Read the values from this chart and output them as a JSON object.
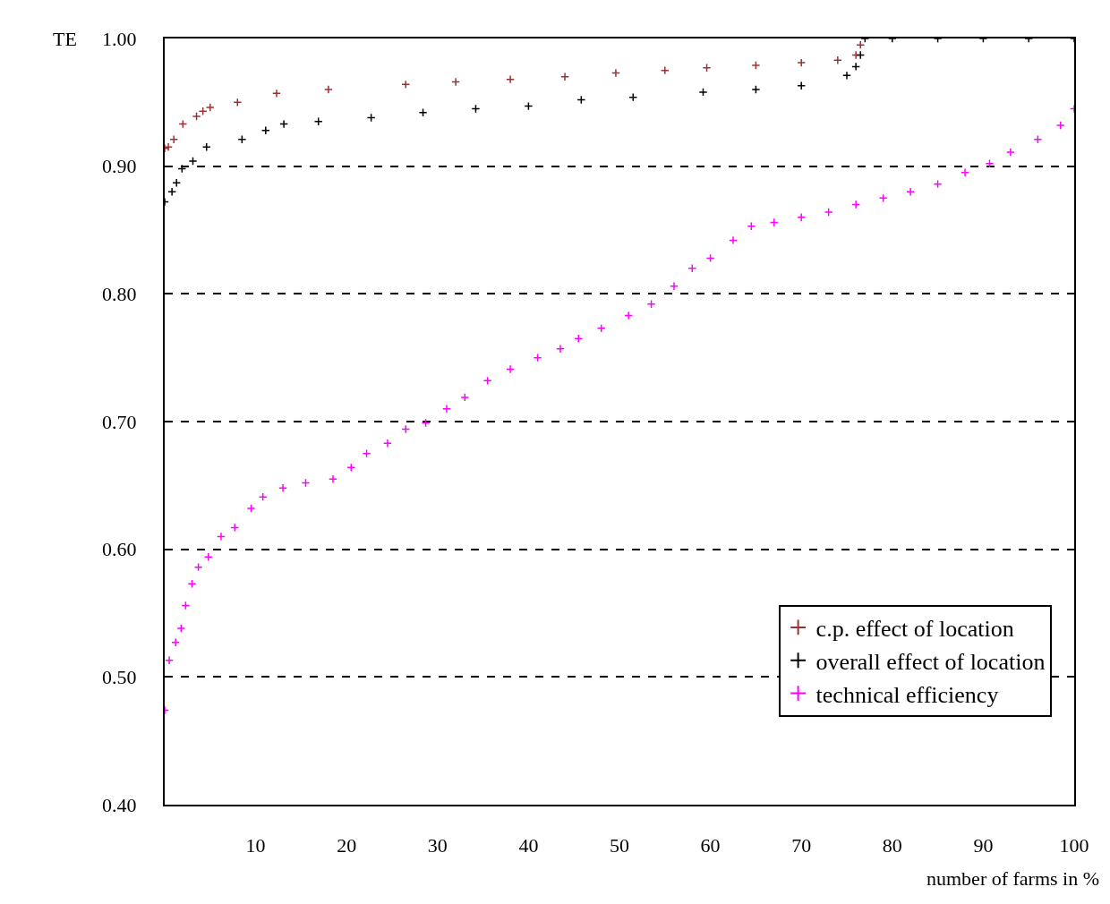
{
  "chart_data": {
    "type": "scatter",
    "xlabel": "number of farms in %",
    "ylabel": "TE",
    "xlim": [
      0,
      100
    ],
    "xticks": [
      10,
      20,
      30,
      40,
      50,
      60,
      70,
      80,
      90,
      100
    ],
    "ylim": [
      0.4,
      1.0
    ],
    "yticks": [
      {
        "value": 0.4,
        "label": "0.40"
      },
      {
        "value": 0.5,
        "label": "0.50"
      },
      {
        "value": 0.6,
        "label": "0.60"
      },
      {
        "value": 0.7,
        "label": "0.70"
      },
      {
        "value": 0.8,
        "label": "0.80"
      },
      {
        "value": 0.9,
        "label": "0.90"
      },
      {
        "value": 1.0,
        "label": "1.00"
      }
    ],
    "grid": "y",
    "legend": "bottom right",
    "marker": "cross",
    "series": [
      {
        "name": "c.p. effect of location",
        "color": "#993333",
        "x": [
          0,
          0.4,
          1,
          2,
          3.5,
          4.2,
          5,
          8,
          12.3,
          18,
          26.5,
          32,
          38,
          44,
          49.6,
          55,
          59.6,
          65,
          70,
          74,
          76,
          76.5
        ],
        "values": [
          0.914,
          0.915,
          0.921,
          0.933,
          0.939,
          0.943,
          0.946,
          0.95,
          0.957,
          0.96,
          0.964,
          0.966,
          0.968,
          0.97,
          0.973,
          0.975,
          0.977,
          0.979,
          0.981,
          0.983,
          0.987,
          0.995
        ]
      },
      {
        "name": "overall effect of location",
        "color": "#000000",
        "x": [
          0,
          0.8,
          1.3,
          1.9,
          3.1,
          4.6,
          8.5,
          11.1,
          13.1,
          16.9,
          22.7,
          28.4,
          34.2,
          40,
          45.8,
          51.5,
          59.2,
          65,
          70,
          75,
          76,
          76.5,
          77,
          80,
          85,
          90,
          95,
          100
        ],
        "values": [
          0.872,
          0.88,
          0.887,
          0.898,
          0.904,
          0.915,
          0.921,
          0.928,
          0.933,
          0.935,
          0.938,
          0.942,
          0.945,
          0.947,
          0.952,
          0.954,
          0.958,
          0.96,
          0.963,
          0.971,
          0.978,
          0.987,
          1.0,
          1.0,
          1.0,
          1.0,
          1.0,
          1.0
        ]
      },
      {
        "name": "technical efficiency",
        "color": "#ff00ff",
        "x": [
          0,
          0.5,
          1.2,
          1.8,
          2.3,
          3,
          3.7,
          4.8,
          6.2,
          7.7,
          9.5,
          10.8,
          13,
          15.5,
          18.5,
          20.5,
          22.2,
          24.5,
          26.5,
          28.7,
          31,
          33,
          35.5,
          38,
          41,
          43.5,
          45.5,
          48,
          51,
          53.5,
          56,
          58,
          60,
          62.5,
          64.5,
          67,
          70,
          73,
          76,
          79,
          82,
          85,
          88,
          90.7,
          93,
          96,
          98.5,
          100
        ],
        "values": [
          0.474,
          0.513,
          0.527,
          0.538,
          0.556,
          0.573,
          0.586,
          0.594,
          0.61,
          0.617,
          0.632,
          0.641,
          0.648,
          0.652,
          0.655,
          0.664,
          0.675,
          0.683,
          0.694,
          0.699,
          0.71,
          0.719,
          0.732,
          0.741,
          0.75,
          0.757,
          0.765,
          0.773,
          0.783,
          0.792,
          0.806,
          0.82,
          0.828,
          0.842,
          0.853,
          0.856,
          0.86,
          0.864,
          0.87,
          0.875,
          0.88,
          0.886,
          0.895,
          0.902,
          0.911,
          0.921,
          0.932,
          0.945
        ]
      }
    ]
  }
}
